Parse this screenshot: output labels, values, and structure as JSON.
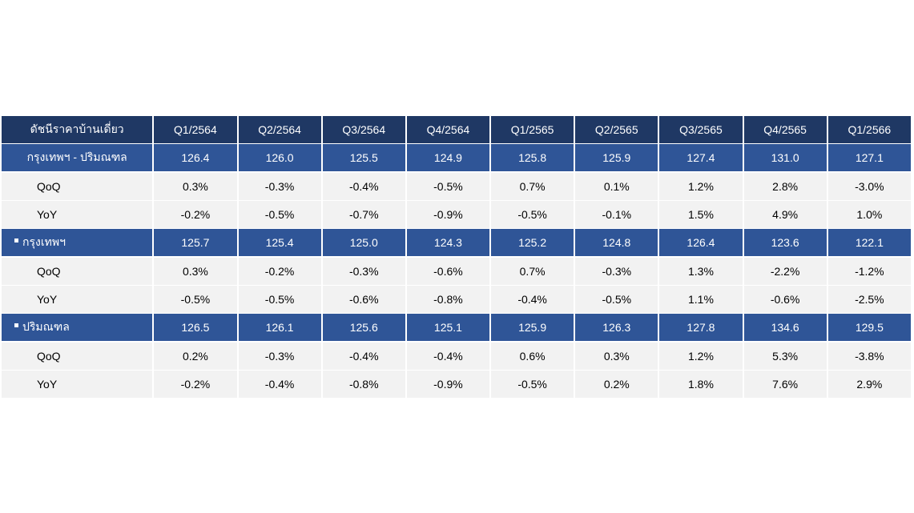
{
  "chart_data": {
    "type": "table",
    "header_label": "ดัชนีราคาบ้านเดี่ยว",
    "columns": [
      "Q1/2564",
      "Q2/2564",
      "Q3/2564",
      "Q4/2564",
      "Q1/2565",
      "Q2/2565",
      "Q3/2565",
      "Q4/2565",
      "Q1/2566"
    ],
    "groups": [
      {
        "label": "กรุงเทพฯ - ปริมณฑล",
        "bullet": false,
        "values": [
          "126.4",
          "126.0",
          "125.5",
          "124.9",
          "125.8",
          "125.9",
          "127.4",
          "131.0",
          "127.1"
        ],
        "rows": [
          {
            "label": "QoQ",
            "values": [
              "0.3%",
              "-0.3%",
              "-0.4%",
              "-0.5%",
              "0.7%",
              "0.1%",
              "1.2%",
              "2.8%",
              "-3.0%"
            ]
          },
          {
            "label": "YoY",
            "values": [
              "-0.2%",
              "-0.5%",
              "-0.7%",
              "-0.9%",
              "-0.5%",
              "-0.1%",
              "1.5%",
              "4.9%",
              "1.0%"
            ]
          }
        ]
      },
      {
        "label": "กรุงเทพฯ",
        "bullet": true,
        "values": [
          "125.7",
          "125.4",
          "125.0",
          "124.3",
          "125.2",
          "124.8",
          "126.4",
          "123.6",
          "122.1"
        ],
        "rows": [
          {
            "label": "QoQ",
            "values": [
              "0.3%",
              "-0.2%",
              "-0.3%",
              "-0.6%",
              "0.7%",
              "-0.3%",
              "1.3%",
              "-2.2%",
              "-1.2%"
            ]
          },
          {
            "label": "YoY",
            "values": [
              "-0.5%",
              "-0.5%",
              "-0.6%",
              "-0.8%",
              "-0.4%",
              "-0.5%",
              "1.1%",
              "-0.6%",
              "-2.5%"
            ]
          }
        ]
      },
      {
        "label": "ปริมณฑล",
        "bullet": true,
        "values": [
          "126.5",
          "126.1",
          "125.6",
          "125.1",
          "125.9",
          "126.3",
          "127.8",
          "134.6",
          "129.5"
        ],
        "rows": [
          {
            "label": "QoQ",
            "values": [
              "0.2%",
              "-0.3%",
              "-0.4%",
              "-0.4%",
              "0.6%",
              "0.3%",
              "1.2%",
              "5.3%",
              "-3.8%"
            ]
          },
          {
            "label": "YoY",
            "values": [
              "-0.2%",
              "-0.4%",
              "-0.8%",
              "-0.9%",
              "-0.5%",
              "0.2%",
              "1.8%",
              "7.6%",
              "2.9%"
            ]
          }
        ]
      }
    ]
  },
  "colors": {
    "header_bg": "#1f3864",
    "group_bg": "#2f5597",
    "sub_bg": "#f2f2f2",
    "negative": "#e0201f"
  },
  "negative_exceptions": [
    "-0.3%"
  ]
}
